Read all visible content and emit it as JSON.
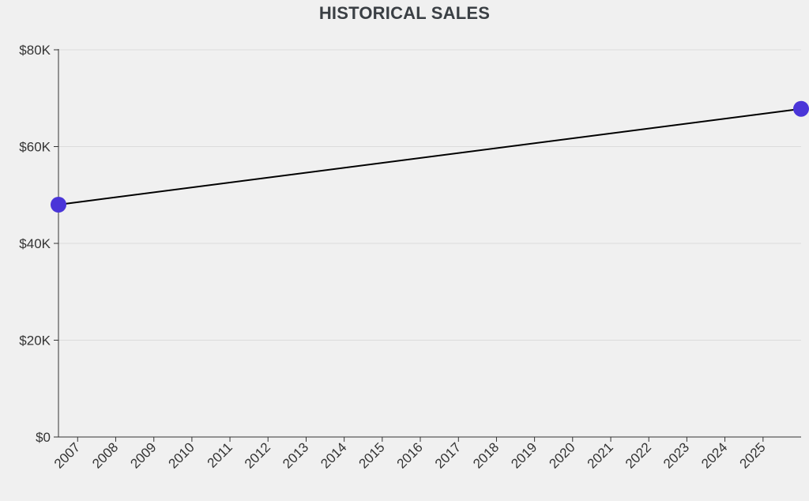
{
  "chart_data": {
    "type": "line",
    "title": "HISTORICAL SALES",
    "xlabel": "",
    "ylabel": "",
    "x_ticks": [
      "2007",
      "2008",
      "2009",
      "2010",
      "2011",
      "2012",
      "2013",
      "2014",
      "2015",
      "2016",
      "2017",
      "2018",
      "2019",
      "2020",
      "2021",
      "2022",
      "2023",
      "2024",
      "2025"
    ],
    "y_ticks": [
      "$0",
      "$20K",
      "$40K",
      "$60K",
      "$80K"
    ],
    "ylim": [
      0,
      80000
    ],
    "xlim": [
      "2006-07-01",
      "2026-01-01"
    ],
    "grid": "horizontal",
    "legend": "none",
    "series": [
      {
        "x": [
          "2006-07-01",
          "2026-01-01"
        ],
        "values": [
          48000,
          67800
        ]
      }
    ],
    "colors": {
      "line": "#000000",
      "point": "#4a35d8",
      "grid": "#dcdcdc",
      "axis": "#333333",
      "text": "#333333",
      "title": "#3a3f44"
    }
  }
}
